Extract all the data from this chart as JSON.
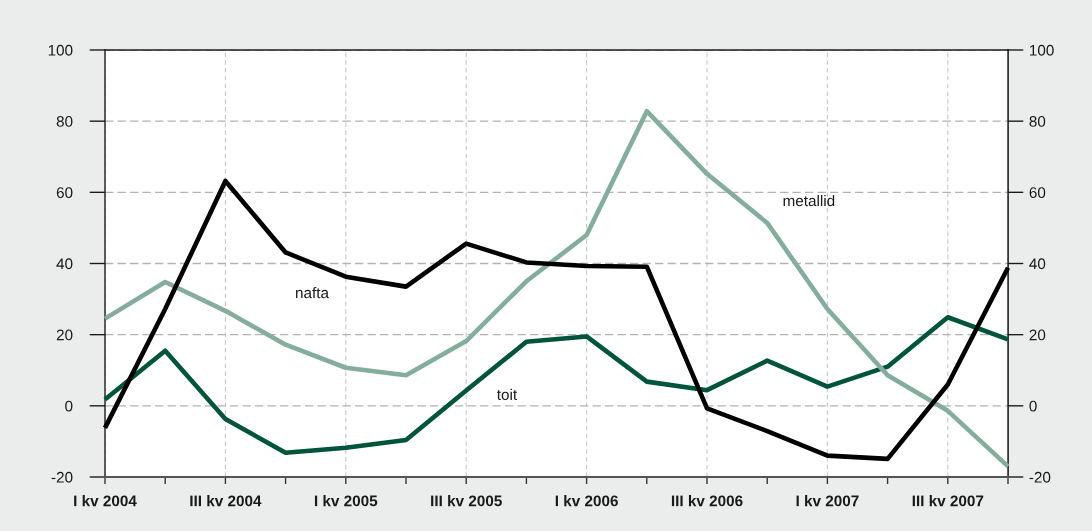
{
  "chart_data": {
    "type": "line",
    "categories": [
      "I kv 2004",
      null,
      "III kv 2004",
      null,
      "I kv 2005",
      null,
      "III kv 2005",
      null,
      "I kv 2006",
      null,
      "III kv 2006",
      null,
      "I kv 2007",
      null,
      "III kv 2007",
      null
    ],
    "series": [
      {
        "name": "nafta",
        "color": "#000000",
        "values": [
          -6.2,
          27.2,
          63.2,
          43.1,
          36.3,
          33.5,
          45.6,
          40.3,
          39.3,
          39.1,
          -0.7,
          -7.1,
          -14.0,
          -14.9,
          6.0,
          38.8
        ]
      },
      {
        "name": "metallid",
        "color": "#84ad9c",
        "values": [
          24.5,
          34.8,
          26.7,
          17.2,
          10.7,
          8.6,
          18.2,
          35.0,
          48.0,
          82.8,
          65.2,
          51.4,
          27.2,
          8.6,
          -1.4,
          -17.0
        ]
      },
      {
        "name": "toit",
        "color": "#00543c",
        "values": [
          1.8,
          15.5,
          -3.7,
          -13.2,
          -11.8,
          -9.6,
          4.3,
          18.0,
          19.5,
          6.8,
          4.4,
          12.7,
          5.4,
          11.0,
          24.9,
          18.7
        ]
      }
    ],
    "ylim": [
      -20,
      100
    ],
    "yticks": [
      -20,
      0,
      20,
      40,
      60,
      80,
      100
    ],
    "y2lim": [
      -20,
      100
    ],
    "y2ticks": [
      -20,
      0,
      20,
      40,
      60,
      80,
      100
    ],
    "grid": true,
    "legend": false,
    "marker": "none",
    "line_style": "solid"
  }
}
